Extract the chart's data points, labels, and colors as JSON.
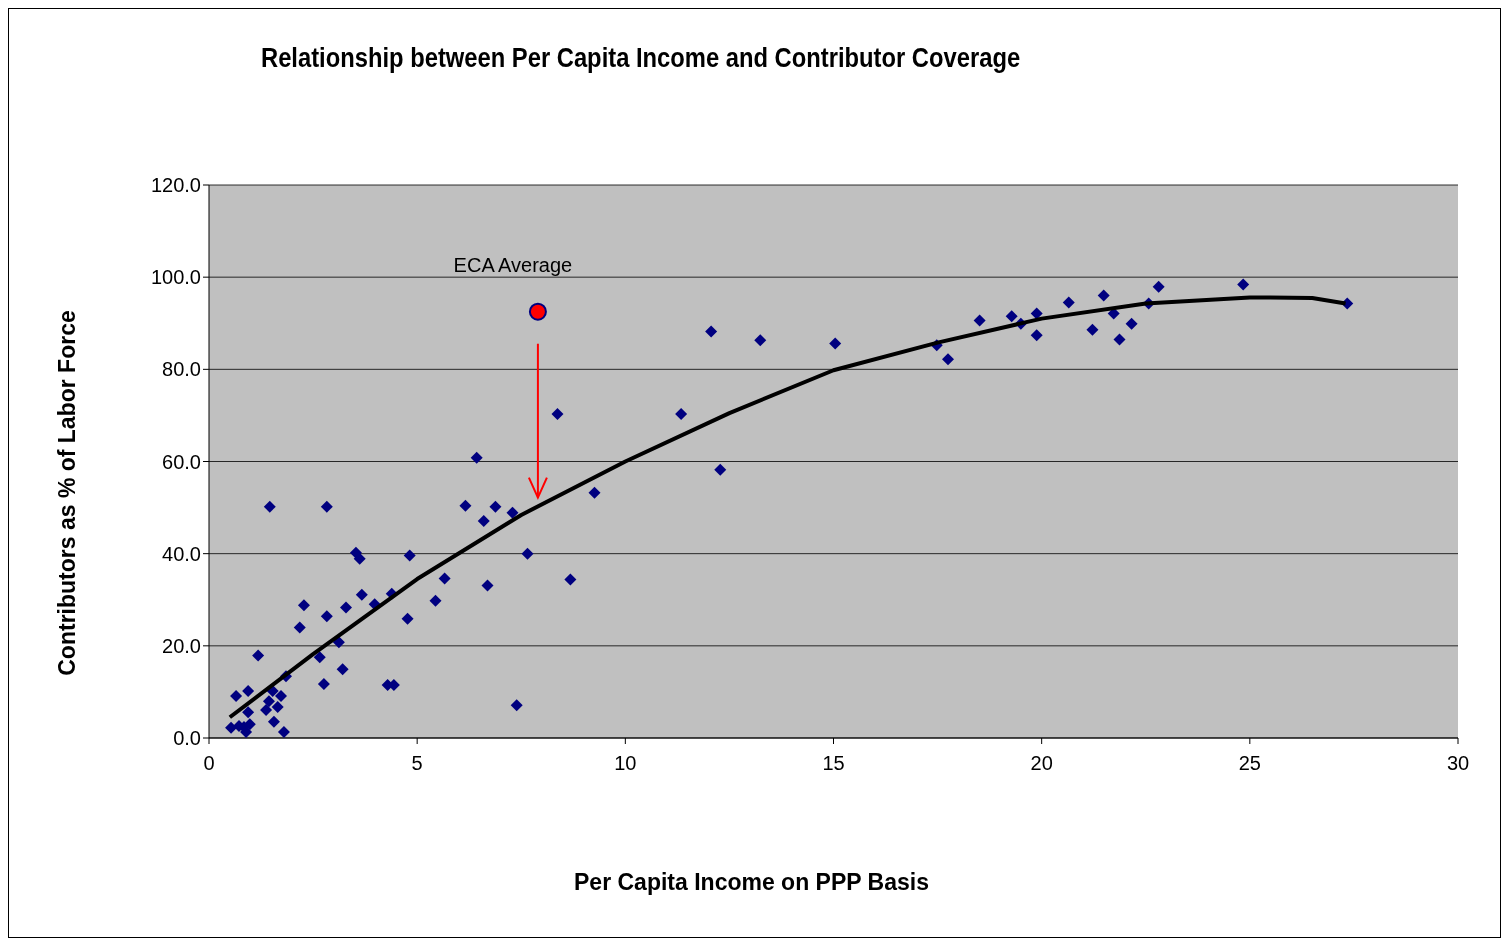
{
  "chart_data": {
    "type": "scatter",
    "title": "Relationship between Per Capita Income and Contributor Coverage",
    "xlabel": "Per Capita Income on PPP Basis",
    "ylabel": "Contributors as % of Labor Force",
    "xlim": [
      0,
      30
    ],
    "xticks": [
      0,
      5,
      10,
      15,
      20,
      25,
      30
    ],
    "ylim": [
      0,
      120
    ],
    "yticks": [
      {
        "value": 0,
        "label": "0.0"
      },
      {
        "value": 20,
        "label": "20.0"
      },
      {
        "value": 40,
        "label": "40.0"
      },
      {
        "value": 60,
        "label": "60.0"
      },
      {
        "value": 80,
        "label": "80.0"
      },
      {
        "value": 100,
        "label": "100.0"
      },
      {
        "value": 120,
        "label": "120.0"
      }
    ],
    "grid": "y",
    "series": [
      {
        "marker": "diamond",
        "color": "#000080",
        "x": [
          1.46,
          2.83,
          3.53,
          3.62,
          4.82,
          5.66,
          5.44,
          3.67,
          4.39,
          3.98,
          2.28,
          3.29,
          2.83,
          4.77,
          2.18,
          3.12,
          1.18,
          2.66,
          1.85,
          3.21,
          2.76,
          4.29,
          4.44,
          0.65,
          0.94,
          1.53,
          1.73,
          1.44,
          1.65,
          1.37,
          0.94,
          0.98,
          1.56,
          0.53,
          0.72,
          0.89,
          1.8,
          0.84,
          8.37,
          11.34,
          6.43,
          12.28,
          9.26,
          6.16,
          6.88,
          7.29,
          6.6,
          7.65,
          8.68,
          6.69,
          7.39,
          12.06,
          13.24,
          15.04,
          17.48,
          17.75,
          18.51,
          19.28,
          19.5,
          19.88,
          19.88,
          20.65,
          21.49,
          21.73,
          21.22,
          21.87,
          22.16,
          22.57,
          22.81,
          24.84,
          27.34
        ],
        "values": [
          50.2,
          50.2,
          40.2,
          38.9,
          39.6,
          34.6,
          29.8,
          31.1,
          31.3,
          29.0,
          28.8,
          28.3,
          26.4,
          25.9,
          24.0,
          20.8,
          17.9,
          17.5,
          13.4,
          14.9,
          11.7,
          11.5,
          11.5,
          9.1,
          10.2,
          10.2,
          9.1,
          8.0,
          6.7,
          6.1,
          5.6,
          3.0,
          3.5,
          2.2,
          2.6,
          1.3,
          1.3,
          2.4,
          70.3,
          70.3,
          60.8,
          58.2,
          53.2,
          50.4,
          50.2,
          48.9,
          47.1,
          40.0,
          34.4,
          33.1,
          7.1,
          88.2,
          86.3,
          85.6,
          85.2,
          82.2,
          90.6,
          91.5,
          89.9,
          92.1,
          87.4,
          94.5,
          96.0,
          92.1,
          88.6,
          86.5,
          89.9,
          94.3,
          97.9,
          98.4,
          94.3
        ]
      },
      {
        "name": "ECA Average",
        "type": "scatter",
        "marker": "circle",
        "color": "#ff0000",
        "x": [
          7.9
        ],
        "values": [
          92.5
        ]
      },
      {
        "type": "line",
        "marker": "none",
        "color": "#000000",
        "x": [
          0.5,
          2.5,
          5,
          7.5,
          10,
          12.5,
          15,
          17.5,
          20,
          22.5,
          25,
          26.5,
          27.3
        ],
        "values": [
          4.5,
          18.2,
          34.5,
          48.4,
          60,
          70.5,
          79.8,
          85.8,
          91,
          94.3,
          95.6,
          95.5,
          94.3
        ]
      }
    ]
  }
}
